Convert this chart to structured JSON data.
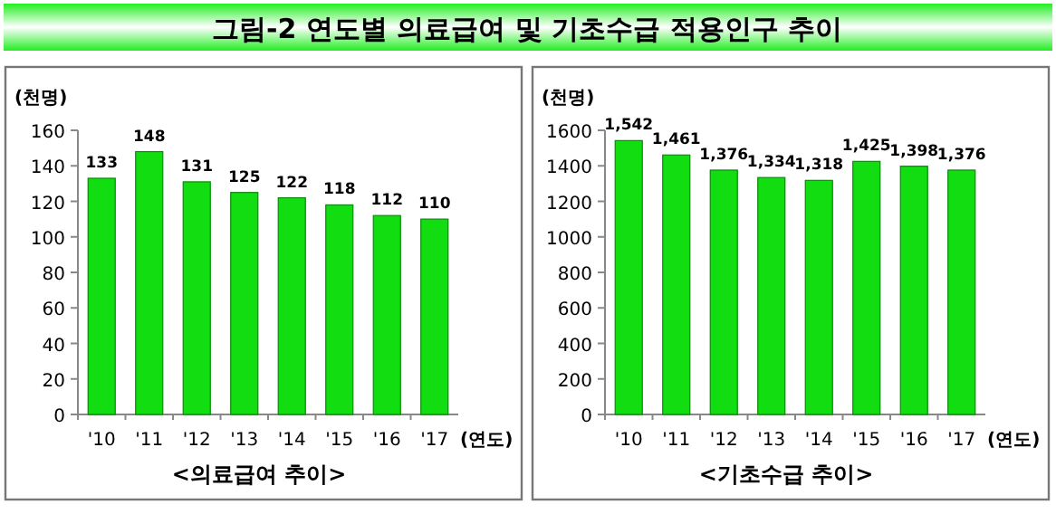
{
  "chart_data": [
    {
      "type": "bar",
      "title": "<의료급여 추이>",
      "annotations": [
        "그림-2   연도별 의료급여 및 기초수급 적용인구 추이"
      ],
      "ylabel": "(천명)",
      "xlabel": "(연도)",
      "categories": [
        "'10",
        "'11",
        "'12",
        "'13",
        "'14",
        "'15",
        "'16",
        "'17"
      ],
      "values": [
        133,
        148,
        131,
        125,
        122,
        118,
        112,
        110
      ],
      "color": "#11dd11",
      "data_labels": true,
      "ylim": [
        0,
        160
      ],
      "yticks": [
        0,
        20,
        40,
        60,
        80,
        100,
        120,
        140,
        160
      ],
      "grid": false
    },
    {
      "type": "bar",
      "title": "<기초수급 추이>",
      "ylabel": "(천명)",
      "xlabel": "(연도)",
      "categories": [
        "'10",
        "'11",
        "'12",
        "'13",
        "'14",
        "'15",
        "'16",
        "'17"
      ],
      "values": [
        1542,
        1461,
        1376,
        1334,
        1318,
        1425,
        1398,
        1376
      ],
      "color": "#11dd11",
      "value_labels": [
        "1,542",
        "1,461",
        "1,376",
        "1,334",
        "1,318",
        "1,425",
        "1,398",
        "1,376"
      ],
      "ylim": [
        0,
        1600
      ],
      "yticks": [
        0,
        200,
        400,
        600,
        800,
        1000,
        1200,
        1400,
        1600
      ],
      "grid": false
    }
  ]
}
